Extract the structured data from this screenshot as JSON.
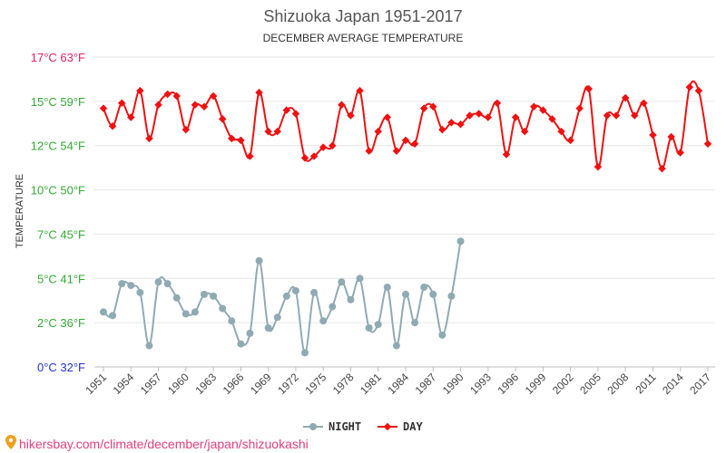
{
  "chart_data": {
    "type": "line",
    "title": "Shizuoka Japan 1951-2017",
    "subtitle": "DECEMBER AVERAGE TEMPERATURE",
    "ylabel": "TEMPERATURE",
    "ylim": [
      0,
      17.5
    ],
    "grid": true,
    "legend_position": "bottom-center",
    "y_ticks": [
      {
        "value": 0,
        "label": "0°C 32°F",
        "color": "#2233cc"
      },
      {
        "value": 2.5,
        "label": "2°C 36°F",
        "color": "#33aa33"
      },
      {
        "value": 5,
        "label": "5°C 41°F",
        "color": "#33aa33"
      },
      {
        "value": 7.5,
        "label": "7°C 45°F",
        "color": "#33aa33"
      },
      {
        "value": 10,
        "label": "10°C 50°F",
        "color": "#33aa33"
      },
      {
        "value": 12.5,
        "label": "12°C 54°F",
        "color": "#33aa33"
      },
      {
        "value": 15,
        "label": "15°C 59°F",
        "color": "#33aa33"
      },
      {
        "value": 17.5,
        "label": "17°C 63°F",
        "color": "#dd2266"
      }
    ],
    "x_ticks": [
      "1951",
      "1954",
      "1957",
      "1960",
      "1963",
      "1966",
      "1969",
      "1972",
      "1975",
      "1978",
      "1981",
      "1984",
      "1987",
      "1990",
      "1993",
      "1996",
      "1999",
      "2002",
      "2005",
      "2008",
      "2011",
      "2014",
      "2017"
    ],
    "series": [
      {
        "name": "NIGHT",
        "color": "#90aab4",
        "marker": "circle",
        "x": [
          1951,
          1952,
          1953,
          1954,
          1955,
          1956,
          1957,
          1958,
          1959,
          1960,
          1961,
          1962,
          1963,
          1964,
          1965,
          1966,
          1967,
          1968,
          1969,
          1970,
          1971,
          1972,
          1973,
          1974,
          1975,
          1976,
          1977,
          1978,
          1979,
          1980,
          1981,
          1982,
          1983,
          1984,
          1985,
          1986,
          1987,
          1988,
          1989,
          1990
        ],
        "y": [
          3.1,
          2.9,
          4.7,
          4.6,
          4.2,
          1.2,
          4.8,
          4.7,
          3.9,
          3.0,
          3.1,
          4.1,
          4.0,
          3.3,
          2.6,
          1.3,
          1.9,
          6.0,
          2.2,
          2.8,
          4.0,
          4.3,
          0.8,
          4.2,
          2.6,
          3.4,
          4.8,
          3.8,
          5.0,
          2.2,
          2.4,
          4.5,
          1.2,
          4.1,
          2.5,
          4.5,
          4.1,
          1.8,
          4.0,
          7.1
        ]
      },
      {
        "name": "DAY",
        "color": "#ee1111",
        "marker": "diamond",
        "x": [
          1951,
          1952,
          1953,
          1954,
          1955,
          1956,
          1957,
          1958,
          1959,
          1960,
          1961,
          1962,
          1963,
          1964,
          1965,
          1966,
          1967,
          1968,
          1969,
          1970,
          1971,
          1972,
          1973,
          1974,
          1975,
          1976,
          1977,
          1978,
          1979,
          1980,
          1981,
          1982,
          1983,
          1984,
          1985,
          1986,
          1987,
          1988,
          1989,
          1990,
          1991,
          1992,
          1993,
          1994,
          1995,
          1996,
          1997,
          1998,
          1999,
          2000,
          2001,
          2002,
          2003,
          2004,
          2005,
          2006,
          2007,
          2008,
          2009,
          2010,
          2011,
          2012,
          2013,
          2014,
          2015,
          2016,
          2017
        ],
        "y": [
          14.6,
          13.6,
          14.9,
          14.1,
          15.6,
          12.9,
          14.8,
          15.4,
          15.3,
          13.4,
          14.8,
          14.7,
          15.3,
          14.0,
          12.9,
          12.8,
          11.9,
          15.5,
          13.3,
          13.3,
          14.5,
          14.3,
          11.8,
          11.9,
          12.4,
          12.5,
          14.8,
          14.2,
          15.6,
          12.2,
          13.3,
          14.1,
          12.2,
          12.8,
          12.6,
          14.6,
          14.7,
          13.4,
          13.8,
          13.7,
          14.2,
          14.3,
          14.1,
          14.9,
          12.0,
          14.1,
          13.3,
          14.7,
          14.5,
          14.0,
          13.3,
          12.8,
          14.6,
          15.7,
          11.3,
          14.2,
          14.2,
          15.2,
          14.2,
          14.9,
          13.1,
          11.2,
          13.0,
          12.1,
          15.8,
          15.6,
          12.6
        ]
      }
    ]
  },
  "source_text": "hikersbay.com/climate/december/japan/shizuokashi"
}
